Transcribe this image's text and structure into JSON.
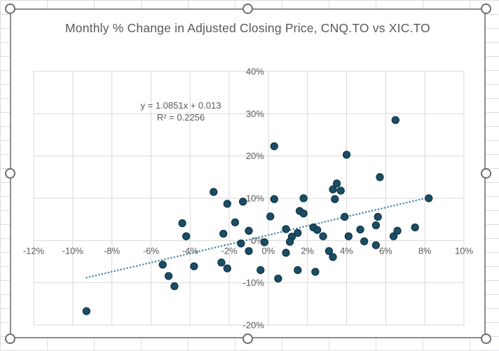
{
  "chart": {
    "title": "Monthly % Change in Adjusted Closing Price, CNQ.TO vs XIC.TO"
  },
  "chart_data": {
    "type": "scatter",
    "title": "Monthly % Change in Adjusted Closing Price, CNQ.TO vs XIC.TO",
    "xlabel": "",
    "ylabel": "",
    "xlim": [
      -12,
      10
    ],
    "ylim": [
      -20,
      40
    ],
    "grid": true,
    "x_tick_values": [
      -12,
      -10,
      -8,
      -6,
      -4,
      -2,
      0,
      2,
      4,
      6,
      8,
      10
    ],
    "x_tick_labels": [
      "-12%",
      "-10%",
      "-8%",
      "-6%",
      "-4%",
      "-2%",
      "0%",
      "2%",
      "4%",
      "6%",
      "8%",
      "10%"
    ],
    "y_tick_values": [
      40,
      30,
      20,
      10,
      0,
      -10,
      -20
    ],
    "y_tick_labels": [
      "40%",
      "30%",
      "20%",
      "10%",
      "0%",
      "-10%",
      "-20%"
    ],
    "equation_text": "y = 1.0851x + 0.013",
    "r_squared_text": "R² = 0.2256",
    "trendline": {
      "slope": 1.0851,
      "intercept_pct": 1.3,
      "x_start": -9.3,
      "x_end": 8.2,
      "style": "dotted"
    },
    "points": [
      [
        0.3,
        22.3
      ],
      [
        6.5,
        28.5
      ],
      [
        4.0,
        20.3
      ],
      [
        5.7,
        15.0
      ],
      [
        3.5,
        13.5
      ],
      [
        3.3,
        12.1
      ],
      [
        3.7,
        11.8
      ],
      [
        3.4,
        9.8
      ],
      [
        8.2,
        10.0
      ],
      [
        -2.8,
        11.5
      ],
      [
        -2.1,
        8.7
      ],
      [
        -1.3,
        9.2
      ],
      [
        0.3,
        9.8
      ],
      [
        1.8,
        10.0
      ],
      [
        1.6,
        7.0
      ],
      [
        1.8,
        6.4
      ],
      [
        0.1,
        5.7
      ],
      [
        -1.7,
        4.3
      ],
      [
        -4.4,
        4.1
      ],
      [
        -1.0,
        2.3
      ],
      [
        -2.3,
        1.6
      ],
      [
        -4.2,
        1.0
      ],
      [
        0.9,
        2.7
      ],
      [
        1.5,
        1.8
      ],
      [
        1.2,
        0.9
      ],
      [
        2.3,
        3.1
      ],
      [
        2.5,
        2.5
      ],
      [
        2.8,
        1.0
      ],
      [
        3.9,
        5.6
      ],
      [
        5.6,
        5.6
      ],
      [
        5.5,
        3.6
      ],
      [
        4.7,
        2.6
      ],
      [
        6.6,
        2.3
      ],
      [
        7.5,
        3.1
      ],
      [
        4.1,
        1.0
      ],
      [
        6.4,
        1.0
      ],
      [
        4.9,
        -0.2
      ],
      [
        5.5,
        -1.1
      ],
      [
        3.1,
        -2.5
      ],
      [
        3.3,
        -3.9
      ],
      [
        -1.4,
        -0.7
      ],
      [
        -0.2,
        -0.4
      ],
      [
        -1.0,
        -2.5
      ],
      [
        0.9,
        -2.9
      ],
      [
        1.1,
        -0.3
      ],
      [
        -3.8,
        -6.1
      ],
      [
        -2.4,
        -5.2
      ],
      [
        -2.1,
        -6.6
      ],
      [
        -0.4,
        -7.0
      ],
      [
        0.5,
        -9.0
      ],
      [
        1.5,
        -7.0
      ],
      [
        2.4,
        -7.4
      ],
      [
        -5.4,
        -5.7
      ],
      [
        -5.1,
        -8.4
      ],
      [
        -4.8,
        -10.8
      ],
      [
        -9.3,
        -16.7
      ]
    ],
    "colors": {
      "point_fill": "#1a4e66",
      "point_stroke": "#113446",
      "trendline": "#3a7f9f",
      "gridline": "#d9d9d9",
      "tick_label": "#595959",
      "title": "#595959",
      "chart_border": "#8c8c8c"
    }
  }
}
